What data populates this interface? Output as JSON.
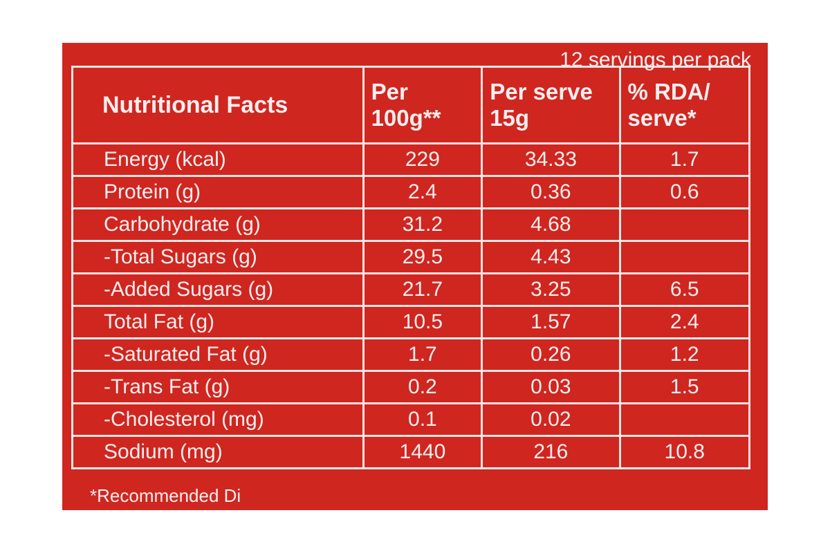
{
  "servings": "12 servings per pack",
  "table": {
    "header": [
      "Nutritional Facts",
      "Per 100g**",
      "Per serve 15g",
      "% RDA/ serve*"
    ],
    "rows": [
      [
        "Energy (kcal)",
        "229",
        "34.33",
        "1.7"
      ],
      [
        "Protein (g)",
        "2.4",
        "0.36",
        "0.6"
      ],
      [
        "Carbohydrate (g)",
        "31.2",
        "4.68",
        null
      ],
      [
        "-Total Sugars (g)",
        "29.5",
        "4.43",
        null
      ],
      [
        "-Added Sugars (g)",
        "21.7",
        "3.25",
        "6.5"
      ],
      [
        "Total Fat (g)",
        "10.5",
        "1.57",
        "2.4"
      ],
      [
        "-Saturated Fat (g)",
        "1.7",
        "0.26",
        "1.2"
      ],
      [
        "-Trans Fat (g)",
        "0.2",
        "0.03",
        "1.5"
      ],
      [
        "-Cholesterol (mg)",
        "0.1",
        "0.02",
        null
      ],
      [
        "Sodium (mg)",
        "1440",
        "216",
        "10.8"
      ]
    ]
  },
  "footnote": "*Recommended Di"
}
